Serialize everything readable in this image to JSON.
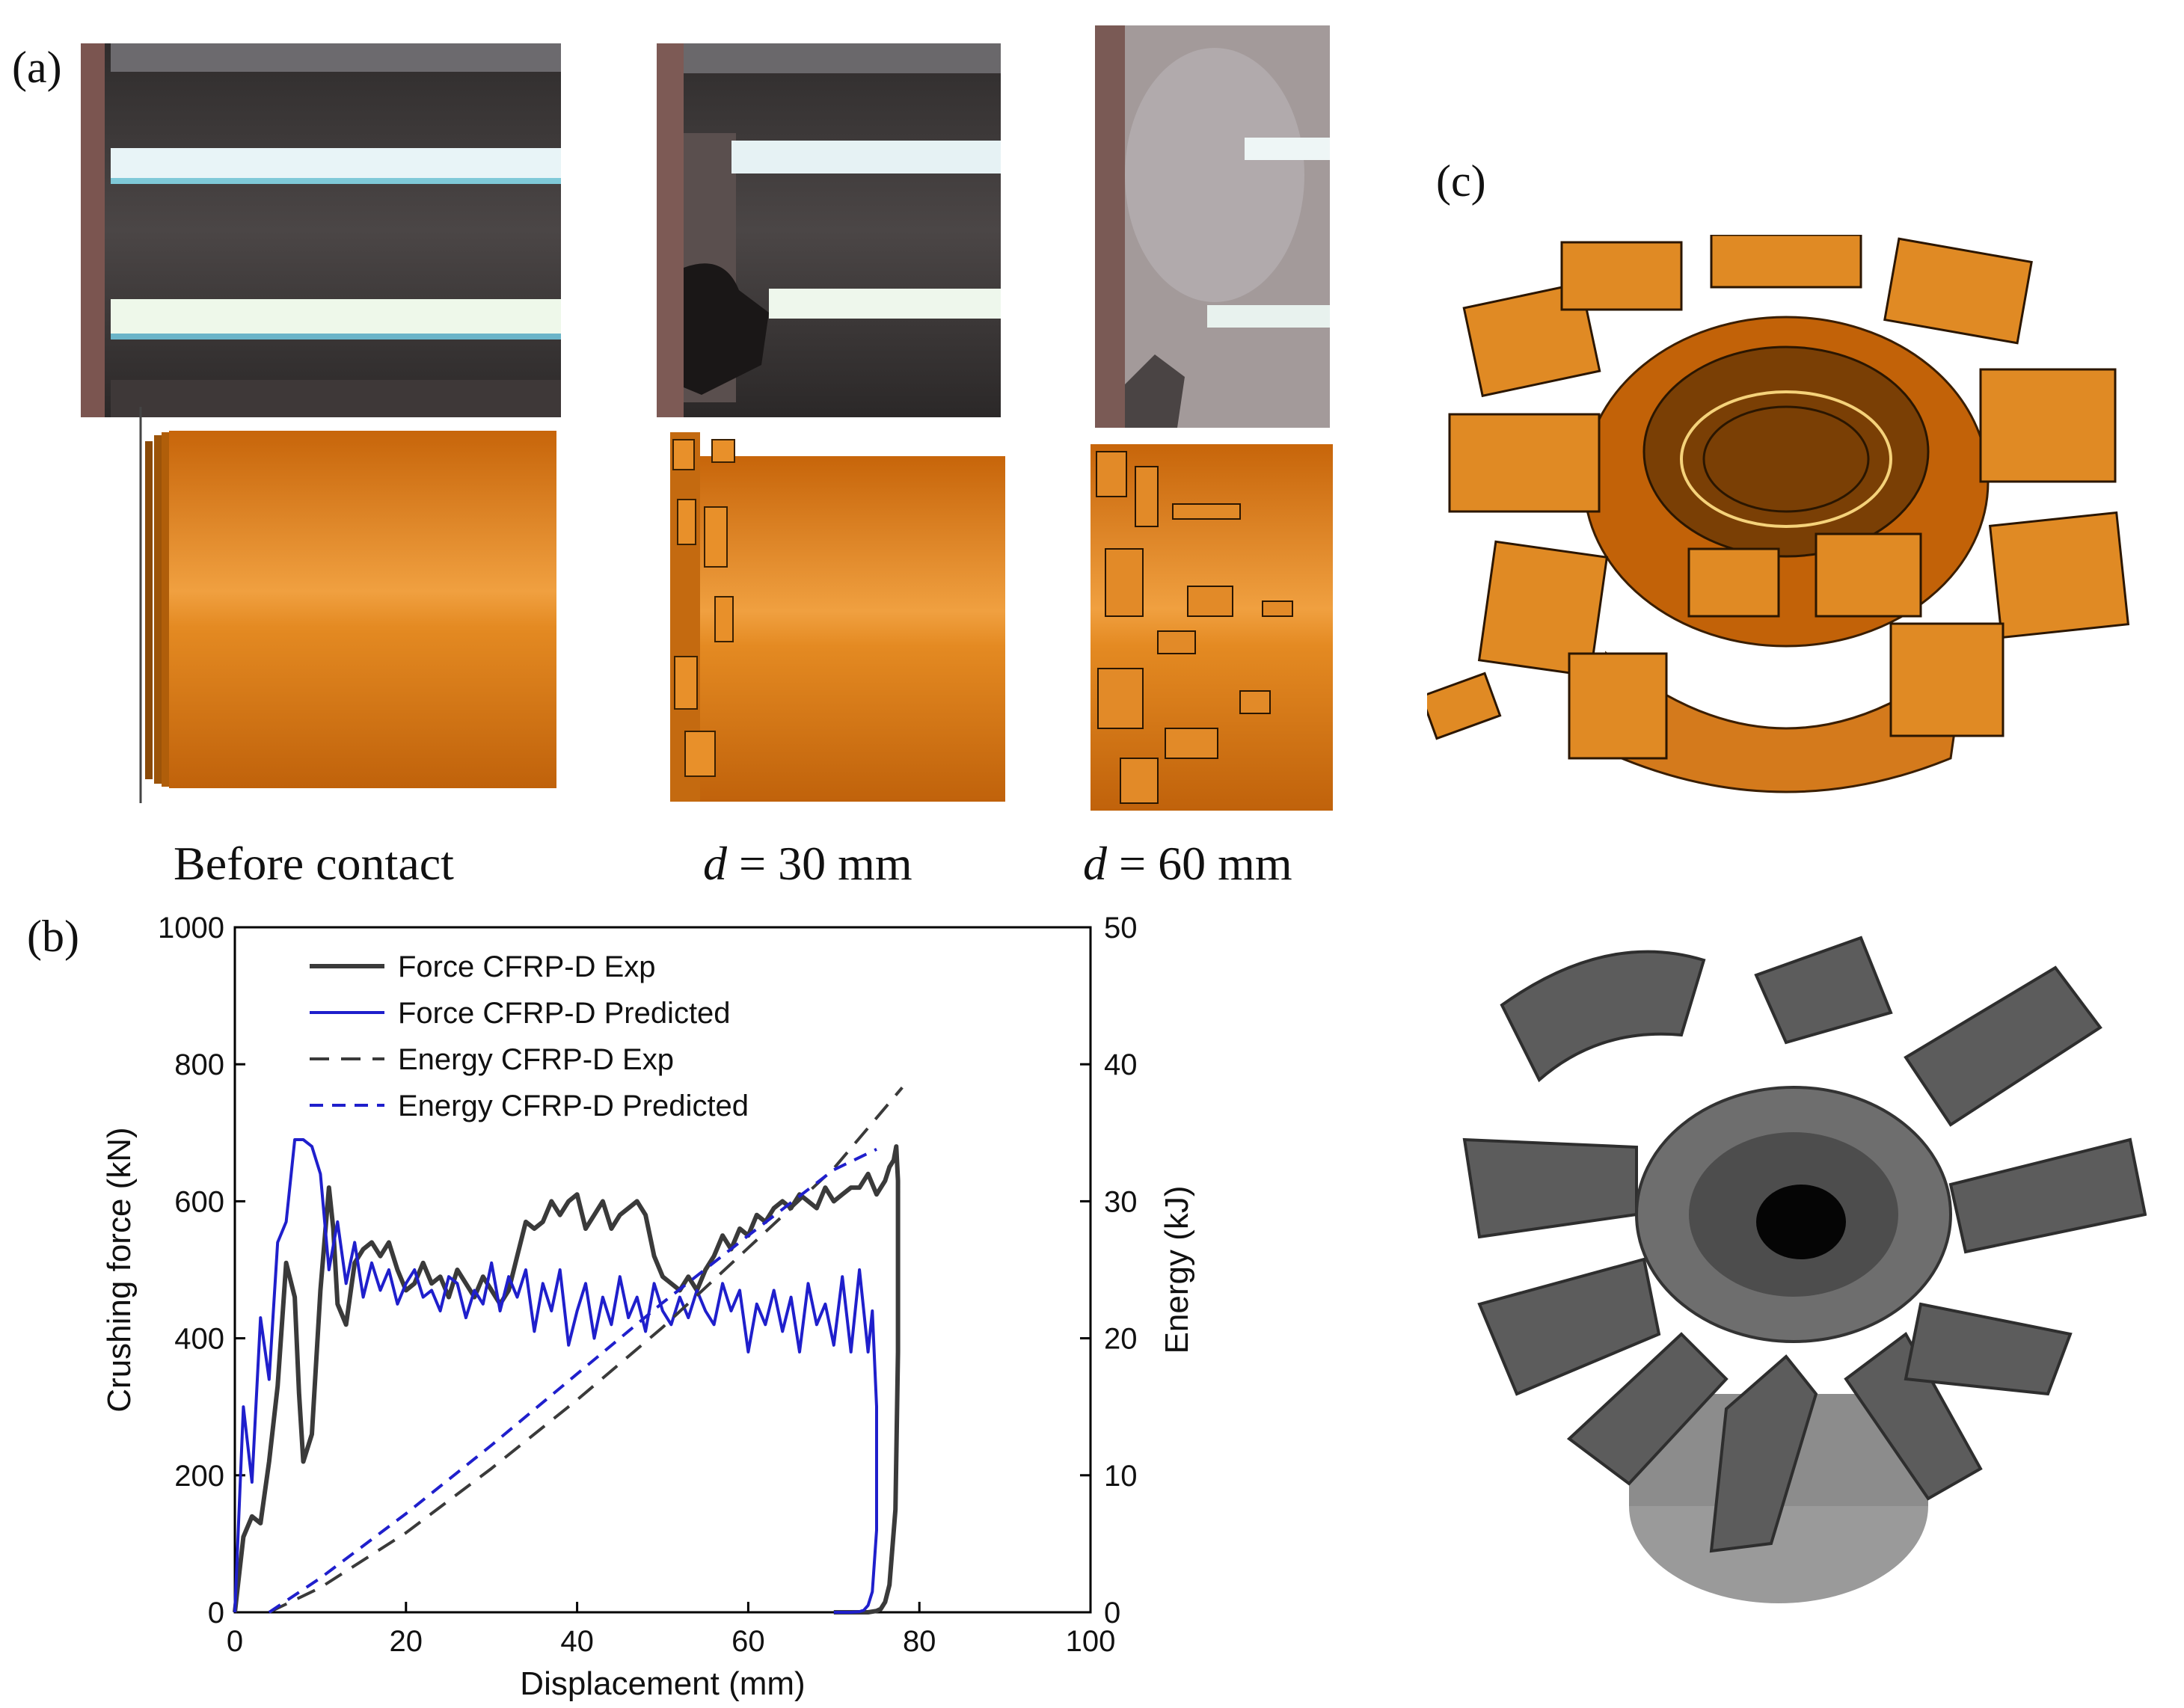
{
  "panels": {
    "a": "(a)",
    "b": "(b)",
    "c": "(c)"
  },
  "captions": [
    {
      "pre": "",
      "var": "",
      "post": "Before contact"
    },
    {
      "pre": "",
      "var": "d",
      "post": " = 30 mm"
    },
    {
      "pre": "",
      "var": "d",
      "post": " = 60 mm"
    }
  ],
  "colors": {
    "orange": "#d9780f",
    "exp": "#3a3a3a",
    "pred": "#1f1fcc"
  },
  "chart_data": {
    "type": "line",
    "xlabel": "Displacement (mm)",
    "ylabel": "Crushing force (kN)",
    "y2label": "Energy (kJ)",
    "xlim": [
      0,
      100
    ],
    "ylim": [
      0,
      1000
    ],
    "y2lim": [
      0,
      50
    ],
    "xticks": [
      0,
      20,
      40,
      60,
      80,
      100
    ],
    "yticks": [
      0,
      200,
      400,
      600,
      800,
      1000
    ],
    "y2ticks": [
      0,
      10,
      20,
      30,
      40,
      50
    ],
    "legend_position": "top-left",
    "series": [
      {
        "name": "Force CFRP-D Exp",
        "axis": "left",
        "style": "solid",
        "color": "#3a3a3a",
        "x": [
          0,
          1,
          2,
          3,
          4,
          5,
          6,
          7,
          7.5,
          8,
          9,
          10,
          11,
          11.5,
          12,
          13,
          14,
          15,
          16,
          17,
          18,
          19,
          20,
          21,
          22,
          23,
          24,
          25,
          26,
          27,
          28,
          29,
          30,
          31,
          32,
          33,
          34,
          35,
          36,
          37,
          38,
          39,
          40,
          41,
          42,
          43,
          44,
          45,
          46,
          47,
          48,
          49,
          50,
          51,
          52,
          53,
          54,
          55,
          56,
          57,
          58,
          59,
          60,
          61,
          62,
          63,
          64,
          65,
          66,
          67,
          68,
          69,
          70,
          71,
          72,
          73,
          74,
          75,
          76,
          76.5,
          77,
          77.3,
          77.5,
          77.5,
          77.2,
          76.5,
          76,
          75.5,
          75,
          74,
          72,
          70
        ],
        "y": [
          0,
          110,
          140,
          130,
          220,
          330,
          510,
          460,
          320,
          220,
          260,
          470,
          620,
          560,
          450,
          420,
          510,
          530,
          540,
          520,
          540,
          500,
          470,
          480,
          510,
          480,
          490,
          460,
          500,
          480,
          460,
          490,
          470,
          450,
          470,
          520,
          570,
          560,
          570,
          600,
          580,
          600,
          610,
          560,
          580,
          600,
          560,
          580,
          590,
          600,
          580,
          520,
          490,
          480,
          470,
          490,
          470,
          500,
          520,
          550,
          530,
          560,
          550,
          580,
          570,
          590,
          600,
          590,
          610,
          600,
          590,
          620,
          600,
          610,
          620,
          620,
          640,
          610,
          630,
          650,
          660,
          680,
          630,
          380,
          150,
          40,
          15,
          5,
          2,
          0,
          0,
          0
        ],
        "note": ""
      },
      {
        "name": "Force CFRP-D Predicted",
        "axis": "left",
        "style": "solid",
        "color": "#1f1fcc",
        "x": [
          0,
          1,
          2,
          3,
          4,
          5,
          6,
          7,
          8,
          9,
          10,
          11,
          12,
          13,
          14,
          15,
          16,
          17,
          18,
          19,
          20,
          21,
          22,
          23,
          24,
          25,
          26,
          27,
          28,
          29,
          30,
          31,
          32,
          33,
          34,
          35,
          36,
          37,
          38,
          39,
          40,
          41,
          42,
          43,
          44,
          45,
          46,
          47,
          48,
          49,
          50,
          51,
          52,
          53,
          54,
          55,
          56,
          57,
          58,
          59,
          60,
          61,
          62,
          63,
          64,
          65,
          66,
          67,
          68,
          69,
          70,
          71,
          72,
          73,
          74,
          74.5,
          75,
          75,
          74.5,
          74,
          73.5,
          73,
          72,
          71,
          70
        ],
        "y": [
          0,
          300,
          190,
          430,
          340,
          540,
          570,
          690,
          690,
          680,
          640,
          500,
          570,
          480,
          540,
          460,
          510,
          470,
          500,
          450,
          480,
          500,
          460,
          470,
          440,
          490,
          480,
          430,
          470,
          450,
          510,
          440,
          490,
          460,
          500,
          410,
          480,
          440,
          500,
          390,
          440,
          480,
          400,
          460,
          420,
          490,
          430,
          460,
          410,
          480,
          440,
          420,
          460,
          430,
          470,
          440,
          420,
          480,
          440,
          470,
          380,
          450,
          420,
          470,
          410,
          460,
          380,
          480,
          420,
          450,
          390,
          490,
          380,
          500,
          380,
          440,
          300,
          120,
          30,
          10,
          3,
          1,
          0,
          0,
          0
        ],
        "note": ""
      },
      {
        "name": "Energy CFRP-D Exp",
        "axis": "right",
        "style": "dashed",
        "color": "#3a3a3a",
        "x": [
          4,
          10,
          20,
          30,
          40,
          50,
          60,
          70,
          78
        ],
        "y": [
          0,
          1.8,
          5.8,
          10.5,
          15.5,
          20.8,
          26.6,
          32.4,
          38.3
        ]
      },
      {
        "name": "Energy CFRP-D Predicted",
        "axis": "right",
        "style": "dashed",
        "color": "#1f1fcc",
        "x": [
          4,
          10,
          20,
          30,
          40,
          50,
          60,
          70,
          75
        ],
        "y": [
          0,
          2.5,
          7.2,
          12.2,
          17.4,
          22.6,
          27.5,
          32.3,
          33.8
        ]
      }
    ]
  }
}
